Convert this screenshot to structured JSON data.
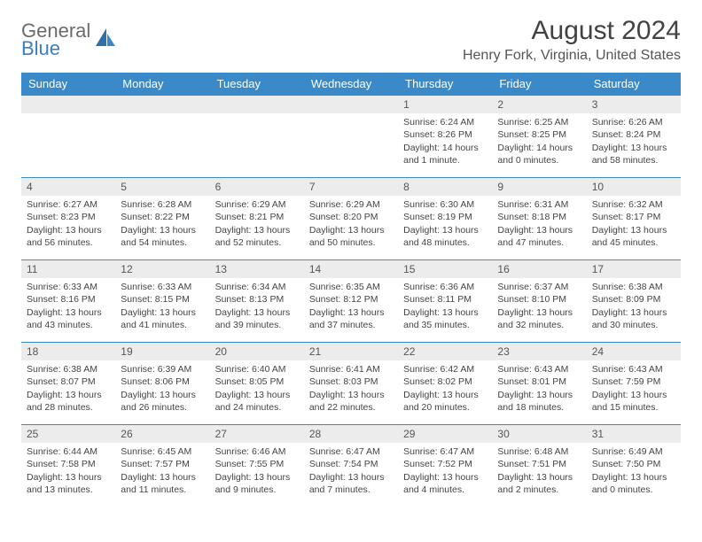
{
  "logo": {
    "line1": "General",
    "line2": "Blue"
  },
  "title": "August 2024",
  "location": "Henry Fork, Virginia, United States",
  "colors": {
    "header_bg": "#3a8ac9",
    "header_text": "#ffffff",
    "daynum_bg": "#ececec",
    "border": "#3a8ac9",
    "logo_gray": "#6b6b6b",
    "logo_blue": "#3a7fc4"
  },
  "day_headers": [
    "Sunday",
    "Monday",
    "Tuesday",
    "Wednesday",
    "Thursday",
    "Friday",
    "Saturday"
  ],
  "weeks": [
    [
      null,
      null,
      null,
      null,
      {
        "num": "1",
        "sunrise": "Sunrise: 6:24 AM",
        "sunset": "Sunset: 8:26 PM",
        "daylight": "Daylight: 14 hours and 1 minute."
      },
      {
        "num": "2",
        "sunrise": "Sunrise: 6:25 AM",
        "sunset": "Sunset: 8:25 PM",
        "daylight": "Daylight: 14 hours and 0 minutes."
      },
      {
        "num": "3",
        "sunrise": "Sunrise: 6:26 AM",
        "sunset": "Sunset: 8:24 PM",
        "daylight": "Daylight: 13 hours and 58 minutes."
      }
    ],
    [
      {
        "num": "4",
        "sunrise": "Sunrise: 6:27 AM",
        "sunset": "Sunset: 8:23 PM",
        "daylight": "Daylight: 13 hours and 56 minutes."
      },
      {
        "num": "5",
        "sunrise": "Sunrise: 6:28 AM",
        "sunset": "Sunset: 8:22 PM",
        "daylight": "Daylight: 13 hours and 54 minutes."
      },
      {
        "num": "6",
        "sunrise": "Sunrise: 6:29 AM",
        "sunset": "Sunset: 8:21 PM",
        "daylight": "Daylight: 13 hours and 52 minutes."
      },
      {
        "num": "7",
        "sunrise": "Sunrise: 6:29 AM",
        "sunset": "Sunset: 8:20 PM",
        "daylight": "Daylight: 13 hours and 50 minutes."
      },
      {
        "num": "8",
        "sunrise": "Sunrise: 6:30 AM",
        "sunset": "Sunset: 8:19 PM",
        "daylight": "Daylight: 13 hours and 48 minutes."
      },
      {
        "num": "9",
        "sunrise": "Sunrise: 6:31 AM",
        "sunset": "Sunset: 8:18 PM",
        "daylight": "Daylight: 13 hours and 47 minutes."
      },
      {
        "num": "10",
        "sunrise": "Sunrise: 6:32 AM",
        "sunset": "Sunset: 8:17 PM",
        "daylight": "Daylight: 13 hours and 45 minutes."
      }
    ],
    [
      {
        "num": "11",
        "sunrise": "Sunrise: 6:33 AM",
        "sunset": "Sunset: 8:16 PM",
        "daylight": "Daylight: 13 hours and 43 minutes."
      },
      {
        "num": "12",
        "sunrise": "Sunrise: 6:33 AM",
        "sunset": "Sunset: 8:15 PM",
        "daylight": "Daylight: 13 hours and 41 minutes."
      },
      {
        "num": "13",
        "sunrise": "Sunrise: 6:34 AM",
        "sunset": "Sunset: 8:13 PM",
        "daylight": "Daylight: 13 hours and 39 minutes."
      },
      {
        "num": "14",
        "sunrise": "Sunrise: 6:35 AM",
        "sunset": "Sunset: 8:12 PM",
        "daylight": "Daylight: 13 hours and 37 minutes."
      },
      {
        "num": "15",
        "sunrise": "Sunrise: 6:36 AM",
        "sunset": "Sunset: 8:11 PM",
        "daylight": "Daylight: 13 hours and 35 minutes."
      },
      {
        "num": "16",
        "sunrise": "Sunrise: 6:37 AM",
        "sunset": "Sunset: 8:10 PM",
        "daylight": "Daylight: 13 hours and 32 minutes."
      },
      {
        "num": "17",
        "sunrise": "Sunrise: 6:38 AM",
        "sunset": "Sunset: 8:09 PM",
        "daylight": "Daylight: 13 hours and 30 minutes."
      }
    ],
    [
      {
        "num": "18",
        "sunrise": "Sunrise: 6:38 AM",
        "sunset": "Sunset: 8:07 PM",
        "daylight": "Daylight: 13 hours and 28 minutes."
      },
      {
        "num": "19",
        "sunrise": "Sunrise: 6:39 AM",
        "sunset": "Sunset: 8:06 PM",
        "daylight": "Daylight: 13 hours and 26 minutes."
      },
      {
        "num": "20",
        "sunrise": "Sunrise: 6:40 AM",
        "sunset": "Sunset: 8:05 PM",
        "daylight": "Daylight: 13 hours and 24 minutes."
      },
      {
        "num": "21",
        "sunrise": "Sunrise: 6:41 AM",
        "sunset": "Sunset: 8:03 PM",
        "daylight": "Daylight: 13 hours and 22 minutes."
      },
      {
        "num": "22",
        "sunrise": "Sunrise: 6:42 AM",
        "sunset": "Sunset: 8:02 PM",
        "daylight": "Daylight: 13 hours and 20 minutes."
      },
      {
        "num": "23",
        "sunrise": "Sunrise: 6:43 AM",
        "sunset": "Sunset: 8:01 PM",
        "daylight": "Daylight: 13 hours and 18 minutes."
      },
      {
        "num": "24",
        "sunrise": "Sunrise: 6:43 AM",
        "sunset": "Sunset: 7:59 PM",
        "daylight": "Daylight: 13 hours and 15 minutes."
      }
    ],
    [
      {
        "num": "25",
        "sunrise": "Sunrise: 6:44 AM",
        "sunset": "Sunset: 7:58 PM",
        "daylight": "Daylight: 13 hours and 13 minutes."
      },
      {
        "num": "26",
        "sunrise": "Sunrise: 6:45 AM",
        "sunset": "Sunset: 7:57 PM",
        "daylight": "Daylight: 13 hours and 11 minutes."
      },
      {
        "num": "27",
        "sunrise": "Sunrise: 6:46 AM",
        "sunset": "Sunset: 7:55 PM",
        "daylight": "Daylight: 13 hours and 9 minutes."
      },
      {
        "num": "28",
        "sunrise": "Sunrise: 6:47 AM",
        "sunset": "Sunset: 7:54 PM",
        "daylight": "Daylight: 13 hours and 7 minutes."
      },
      {
        "num": "29",
        "sunrise": "Sunrise: 6:47 AM",
        "sunset": "Sunset: 7:52 PM",
        "daylight": "Daylight: 13 hours and 4 minutes."
      },
      {
        "num": "30",
        "sunrise": "Sunrise: 6:48 AM",
        "sunset": "Sunset: 7:51 PM",
        "daylight": "Daylight: 13 hours and 2 minutes."
      },
      {
        "num": "31",
        "sunrise": "Sunrise: 6:49 AM",
        "sunset": "Sunset: 7:50 PM",
        "daylight": "Daylight: 13 hours and 0 minutes."
      }
    ]
  ]
}
